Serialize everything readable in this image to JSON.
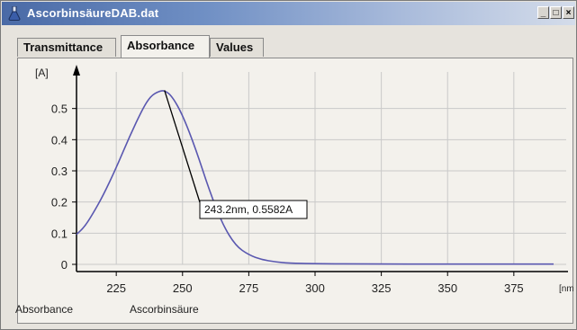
{
  "window": {
    "title": "AscorbinsäureDAB.dat",
    "buttons": {
      "minimize": "_",
      "maximize": "□",
      "close": "×"
    }
  },
  "tabs": [
    {
      "label": "Transmittance",
      "active": false
    },
    {
      "label": "Absorbance",
      "active": true
    },
    {
      "label": "Values",
      "active": false
    }
  ],
  "chart_data": {
    "type": "line",
    "ylabel": "[A]",
    "xlabel": "[nm]",
    "x_ticks": [
      "225",
      "250",
      "275",
      "300",
      "325",
      "350",
      "375"
    ],
    "y_ticks": [
      "0",
      "0.1",
      "0.2",
      "0.3",
      "0.4",
      "0.5"
    ],
    "xlim": [
      210,
      390
    ],
    "ylim": [
      0,
      0.6
    ],
    "grid": true,
    "series": [
      {
        "name": "Ascorbinsäure",
        "color": "#5a58b0",
        "x": [
          210,
          213,
          216,
          220,
          225,
          230,
          235,
          238,
          241,
          243.2,
          246,
          250,
          255,
          260,
          265,
          270,
          275,
          280,
          285,
          290,
          300,
          320,
          350,
          390
        ],
        "y": [
          0.096,
          0.12,
          0.16,
          0.22,
          0.31,
          0.41,
          0.5,
          0.54,
          0.555,
          0.5582,
          0.54,
          0.48,
          0.37,
          0.24,
          0.13,
          0.06,
          0.03,
          0.015,
          0.008,
          0.004,
          0.002,
          0.001,
          0.001,
          0.001
        ]
      }
    ],
    "annotation": {
      "x": 243.2,
      "y": 0.5582,
      "text": "243.2nm, 0.5582A"
    }
  },
  "legend": {
    "mode_label": "Absorbance",
    "series_label": "Ascorbinsäure"
  }
}
